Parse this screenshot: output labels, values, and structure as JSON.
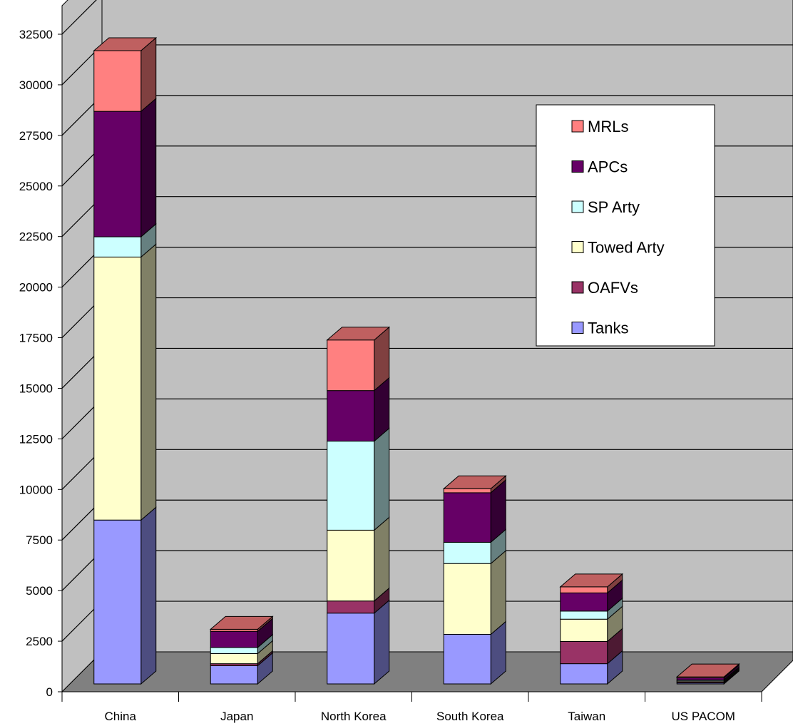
{
  "chart_data": {
    "type": "bar",
    "stacked": true,
    "three_d": true,
    "categories": [
      "China",
      "Japan",
      "North Korea",
      "South Korea",
      "Taiwan",
      "US PACOM"
    ],
    "ylim": [
      0,
      32500
    ],
    "yticks": [
      "0",
      "2500",
      "5000",
      "7500",
      "10000",
      "12500",
      "15000",
      "17500",
      "20000",
      "22500",
      "25000",
      "27500",
      "30000",
      "32500"
    ],
    "grid": true,
    "legend_position": "top-right",
    "series": [
      {
        "name": "Tanks",
        "color": "#9999ff",
        "values": [
          8100,
          900,
          3500,
          2450,
          1000,
          50
        ]
      },
      {
        "name": "OAFVs",
        "color": "#993366",
        "values": [
          0,
          100,
          600,
          0,
          1100,
          50
        ]
      },
      {
        "name": "Towed Arty",
        "color": "#ffffcc",
        "values": [
          13000,
          500,
          3500,
          3500,
          1100,
          50
        ]
      },
      {
        "name": "SP Arty",
        "color": "#ccffff",
        "values": [
          1000,
          300,
          4400,
          1050,
          400,
          50
        ]
      },
      {
        "name": "APCs",
        "color": "#660066",
        "values": [
          6200,
          800,
          2500,
          2450,
          900,
          100
        ]
      },
      {
        "name": "MRLs",
        "color": "#ff8080",
        "values": [
          3000,
          100,
          2500,
          200,
          300,
          50
        ]
      }
    ],
    "colors": {
      "wall": "#c0c0c0",
      "floor": "#808080",
      "gridline": "#000000"
    }
  }
}
